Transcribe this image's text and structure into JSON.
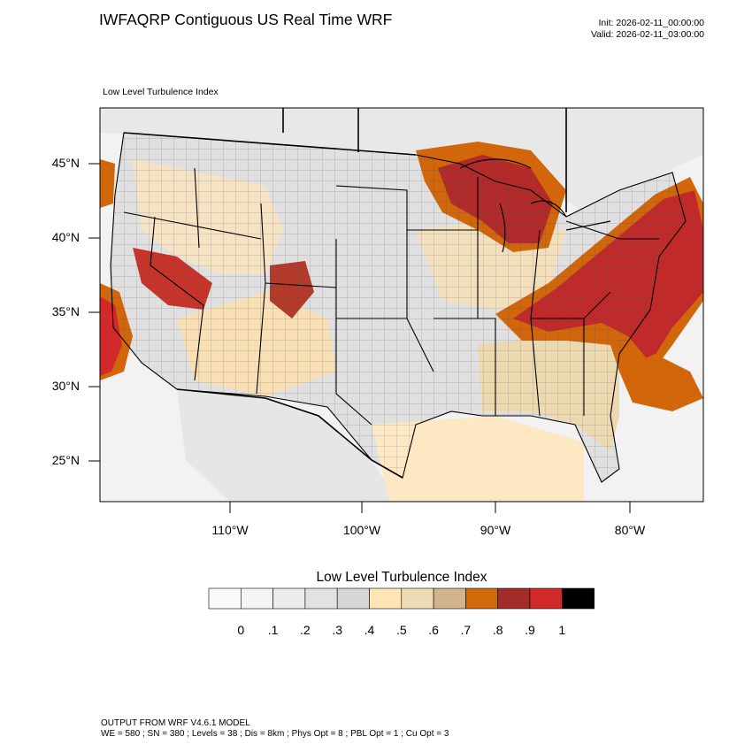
{
  "header": {
    "title": "IWFAQRP Contiguous US Real Time WRF",
    "init": "Init: 2026-02-11_00:00:00",
    "valid": "Valid: 2026-02-11_03:00:00"
  },
  "map": {
    "field_label": "Low Level Turbulence Index",
    "lat_labels": [
      "45°N",
      "40°N",
      "35°N",
      "30°N",
      "25°N"
    ],
    "lon_labels": [
      "110°W",
      "100°W",
      "90°W",
      "80°W"
    ],
    "colors": {
      "ocean": "#f2f2f2",
      "land": "#e3e3e3",
      "low": "#fde1b6",
      "mid": "#eed7ad",
      "tan": "#d2b48c",
      "orange": "#d2660a",
      "brown": "#a52a2a",
      "red": "#d22a2a",
      "border": "#000000"
    }
  },
  "colorbar": {
    "title": "Low Level Turbulence Index",
    "labels": [
      "0",
      ".1",
      ".2",
      ".3",
      ".4",
      ".5",
      ".6",
      ".7",
      ".8",
      ".9",
      "1"
    ],
    "colors": [
      "#fafafa",
      "#f4f4f4",
      "#ececec",
      "#e2e2e2",
      "#d6d6d6",
      "#ffe4b5",
      "#f0dcb4",
      "#d2b48c",
      "#d2690a",
      "#a52a2a",
      "#d22a2a",
      "#000000"
    ]
  },
  "footer": {
    "line1": "OUTPUT FROM WRF V4.6.1 MODEL",
    "line2": "WE = 580 ; SN = 380 ; Levels = 38 ; Dis = 8km ; Phys Opt = 8 ; PBL Opt = 1 ; Cu Opt = 3"
  }
}
